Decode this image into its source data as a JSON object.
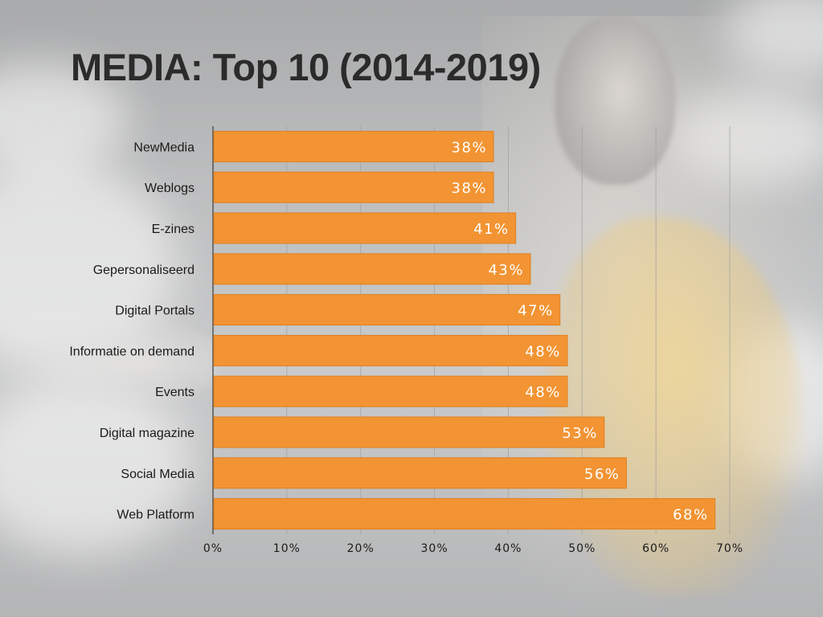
{
  "title": "MEDIA: Top 10 (2014-2019)",
  "colors": {
    "bar": "#f29433",
    "bar_edge": "#e07f1f",
    "grid": "#9fa0a2",
    "axis": "#555555"
  },
  "chart_data": {
    "type": "bar",
    "orientation": "horizontal",
    "categories": [
      "NewMedia",
      "Weblogs",
      "E-zines",
      "Gepersonaliseerd",
      "Digital Portals",
      "Informatie on demand",
      "Events",
      "Digital magazine",
      "Social Media",
      "Web Platform"
    ],
    "values": [
      38,
      38,
      41,
      43,
      47,
      48,
      48,
      53,
      56,
      68
    ],
    "value_labels": [
      "38%",
      "38%",
      "41%",
      "43%",
      "47%",
      "48%",
      "48%",
      "53%",
      "56%",
      "68%"
    ],
    "ticks": [
      0,
      10,
      20,
      30,
      40,
      50,
      60,
      70
    ],
    "tick_labels": [
      "0%",
      "10%",
      "20%",
      "30%",
      "40%",
      "50%",
      "60%",
      "70%"
    ],
    "xlim": [
      0,
      70
    ],
    "grid": true,
    "legend": "none"
  }
}
